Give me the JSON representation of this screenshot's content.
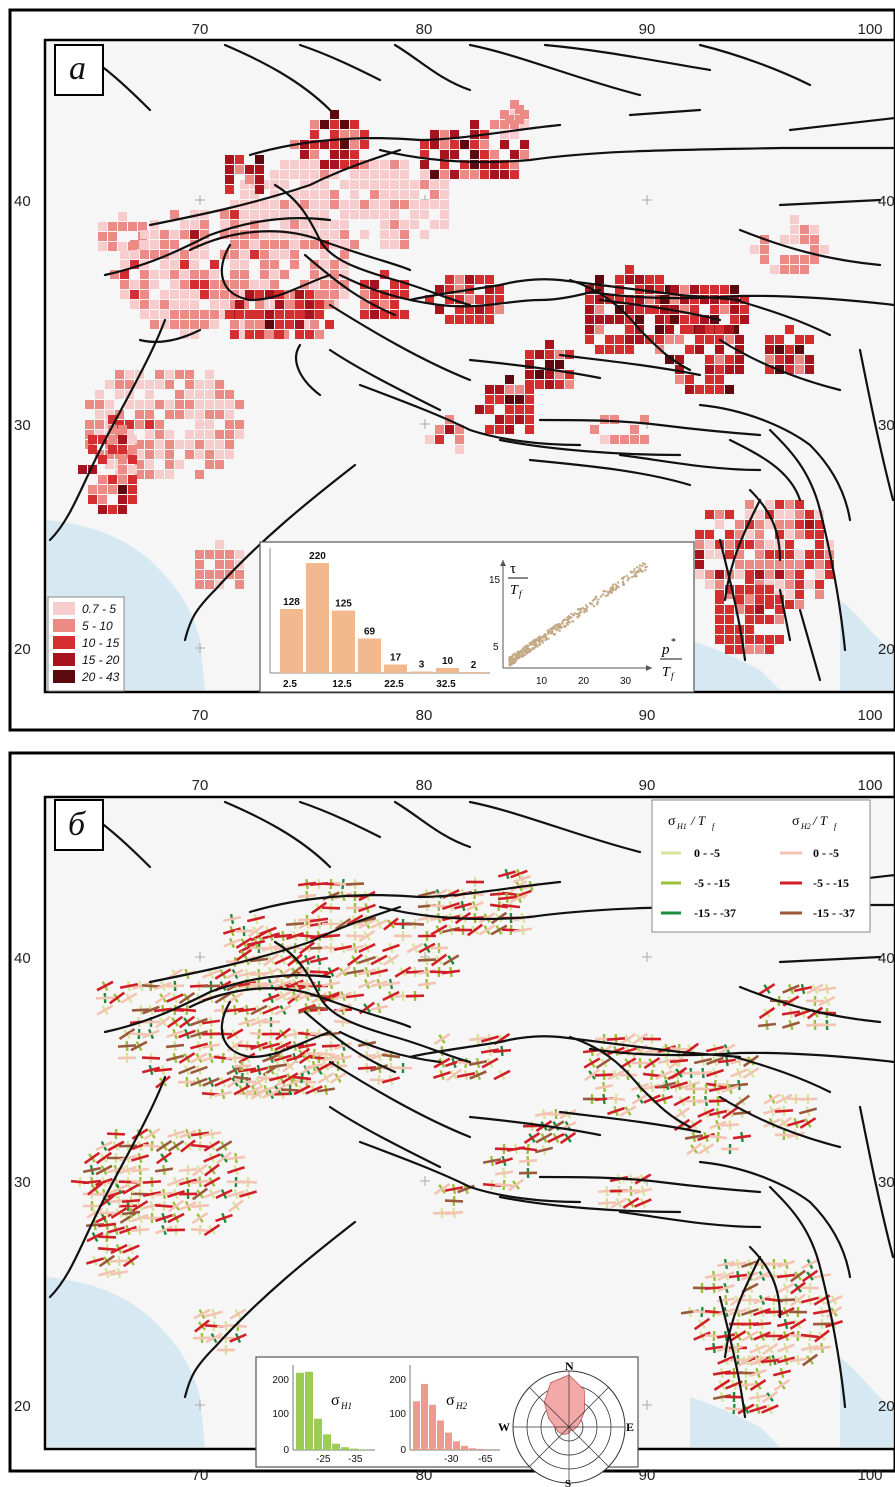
{
  "panel_a": {
    "label": "а",
    "x_ticks": [
      "70",
      "80",
      "90",
      "100"
    ],
    "y_ticks": [
      "40",
      "30",
      "20"
    ],
    "right_y_ticks": [
      "40",
      "30",
      "20"
    ],
    "legend": [
      {
        "label": "0.7 - 5",
        "color": "#f6cccc"
      },
      {
        "label": "5 - 10",
        "color": "#ec8a86"
      },
      {
        "label": "10 - 15",
        "color": "#d52e31"
      },
      {
        "label": "15 - 20",
        "color": "#a8141e"
      },
      {
        "label": "20 - 43",
        "color": "#5c0a10"
      }
    ],
    "histogram": {
      "type": "bar",
      "values": [
        128,
        220,
        125,
        69,
        17,
        3,
        10,
        2
      ],
      "value_labels": [
        "128",
        "220",
        "125",
        "69",
        "17",
        "3",
        "10",
        "2"
      ],
      "x_tick_labels": [
        "2.5",
        "12.5",
        "22.5",
        "32.5"
      ],
      "color": "#f2b98f"
    },
    "scatter": {
      "type": "scatter",
      "y_tick_labels": [
        "15",
        "5"
      ],
      "x_tick_labels": [
        "10",
        "20",
        "30"
      ],
      "ylabel_top": "τ",
      "ylabel_bottom": "T",
      "ylabel_sub": "f",
      "xlabel_top": "p",
      "xlabel_sup": "*",
      "xlabel_bottom": "T",
      "xlabel_sub": "f",
      "color": "#c4a985"
    }
  },
  "panel_b": {
    "label": "б",
    "x_ticks": [
      "70",
      "80",
      "90",
      "100"
    ],
    "y_ticks": [
      "40",
      "30",
      "20"
    ],
    "right_y_ticks": [
      "40",
      "30",
      "20"
    ],
    "legend": {
      "col1_title": "σ",
      "col1_sub": "H1",
      "col1_rest": "/ T",
      "col1_f": "f",
      "col2_title": "σ",
      "col2_sub": "H2",
      "col2_rest": "/ T",
      "col2_f": "f",
      "rows": [
        {
          "label": "0 - -5",
          "color1": "#d6e59c",
          "color2": "#f3c4b2"
        },
        {
          "label": "-5 - -15",
          "color1": "#9bc13b",
          "color2": "#d21e25"
        },
        {
          "label": "-15 - -37",
          "color1": "#1c8d3a",
          "color2": "#9a5a3a"
        }
      ]
    },
    "hist_h1": {
      "type": "bar",
      "title": "σ",
      "title_sub": "H1",
      "y_tick_labels": [
        "200",
        "100",
        "0"
      ],
      "x_tick_labels": [
        "-25",
        "-35"
      ],
      "color": "#9ccc55"
    },
    "hist_h2": {
      "type": "bar",
      "title": "σ",
      "title_sub": "H2",
      "y_tick_labels": [
        "200",
        "100",
        "0"
      ],
      "x_tick_labels": [
        "-30",
        "-65"
      ],
      "color": "#ee9a8e"
    },
    "rose": {
      "labels": {
        "n": "N",
        "e": "E",
        "s": "S",
        "w": "W"
      },
      "color": "#f2a9a8"
    }
  }
}
